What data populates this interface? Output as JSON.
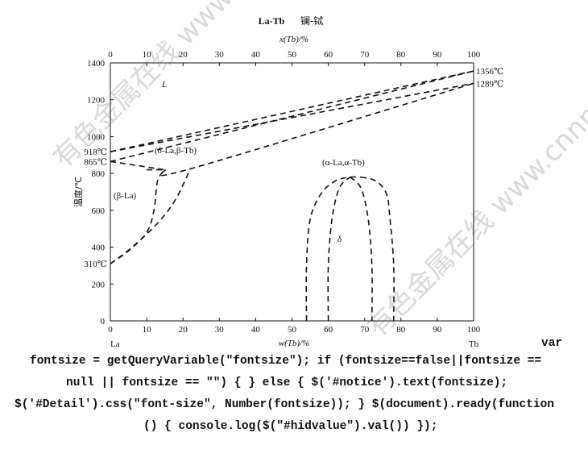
{
  "chart_data": {
    "type": "line",
    "title": "La-Tb",
    "title_cn": "镧-铽",
    "xlabel_bottom": "w(Tb)/%",
    "xlabel_top": "x(Tb)/%",
    "ylabel": "温度/℃",
    "xlim": [
      0,
      100
    ],
    "ylim": [
      0,
      1400
    ],
    "x_ticks": [
      0,
      10,
      20,
      30,
      40,
      50,
      60,
      70,
      80,
      90,
      100
    ],
    "y_ticks": [
      0,
      200,
      400,
      600,
      800,
      1000,
      1200,
      1400
    ],
    "top_ticks": [
      0,
      10,
      20,
      30,
      40,
      50,
      60,
      70,
      80,
      90,
      100
    ],
    "left_element": "La",
    "right_element": "Tb",
    "grid": false,
    "temperature_labels": {
      "la_melting": "918℃",
      "la_transition": "865℃",
      "la_low": "310℃",
      "tb_melting": "1356℃",
      "tb_transition": "1289℃"
    },
    "phase_labels": {
      "liquid": "L",
      "delta_beta": "(δ-La,β-Tb)",
      "beta_la": "(β-La)",
      "alpha": "(α-La,α-Tb)",
      "delta": "δ"
    },
    "series": [
      {
        "style": "dashed",
        "points": [
          [
            0,
            918
          ],
          [
            100,
            1356
          ]
        ]
      },
      {
        "style": "dashed",
        "points": [
          [
            0,
            918
          ],
          [
            100,
            1289
          ]
        ]
      },
      {
        "style": "dashed",
        "points": [
          [
            0,
            865
          ],
          [
            100,
            1356
          ]
        ]
      },
      {
        "style": "dashed",
        "points": [
          [
            0,
            865
          ],
          [
            15,
            820
          ]
        ]
      },
      {
        "style": "dashed",
        "points": [
          [
            15,
            820
          ],
          [
            22,
            825
          ],
          [
            100,
            1289
          ]
        ]
      },
      {
        "style": "dashed",
        "points": [
          [
            0,
            310
          ],
          [
            5,
            380
          ],
          [
            10,
            480
          ],
          [
            12,
            600
          ],
          [
            13,
            760
          ],
          [
            15,
            820
          ]
        ]
      },
      {
        "style": "dashed",
        "points": [
          [
            0,
            310
          ],
          [
            6,
            400
          ],
          [
            13,
            530
          ],
          [
            18,
            660
          ],
          [
            22,
            825
          ]
        ]
      },
      {
        "style": "dashed",
        "points": [
          [
            10,
            820
          ],
          [
            15,
            820
          ]
        ]
      },
      {
        "style": "dashed",
        "points": [
          [
            54,
            0
          ],
          [
            54,
            300
          ],
          [
            55,
            550
          ],
          [
            58,
            690
          ],
          [
            62,
            760
          ],
          [
            66,
            780
          ],
          [
            69,
            780
          ]
        ]
      },
      {
        "style": "dashed",
        "points": [
          [
            69,
            780
          ],
          [
            73,
            760
          ],
          [
            76,
            690
          ],
          [
            77,
            550
          ],
          [
            78,
            300
          ],
          [
            78,
            0
          ]
        ]
      },
      {
        "style": "dashed",
        "points": [
          [
            60,
            0
          ],
          [
            60,
            300
          ],
          [
            61,
            550
          ],
          [
            63,
            720
          ],
          [
            66,
            780
          ]
        ]
      },
      {
        "style": "dashed",
        "points": [
          [
            66,
            780
          ],
          [
            69,
            720
          ],
          [
            71,
            550
          ],
          [
            72,
            300
          ],
          [
            72,
            0
          ]
        ]
      }
    ]
  },
  "watermark_text": "有色金属在线 www.cnnmol.com",
  "code_text": {
    "line1": "var",
    "line2": "fontsize = getQueryVariable(\"fontsize\"); if (fontsize==false||fontsize ==",
    "line3": "null || fontsize == \"\") { } else { $('#notice').text(fontsize);",
    "line4": "$('#Detail').css(\"font-size\", Number(fontsize)); } $(document).ready(function",
    "line5": "() { console.log($(\"#hidvalue\").val()) });"
  }
}
